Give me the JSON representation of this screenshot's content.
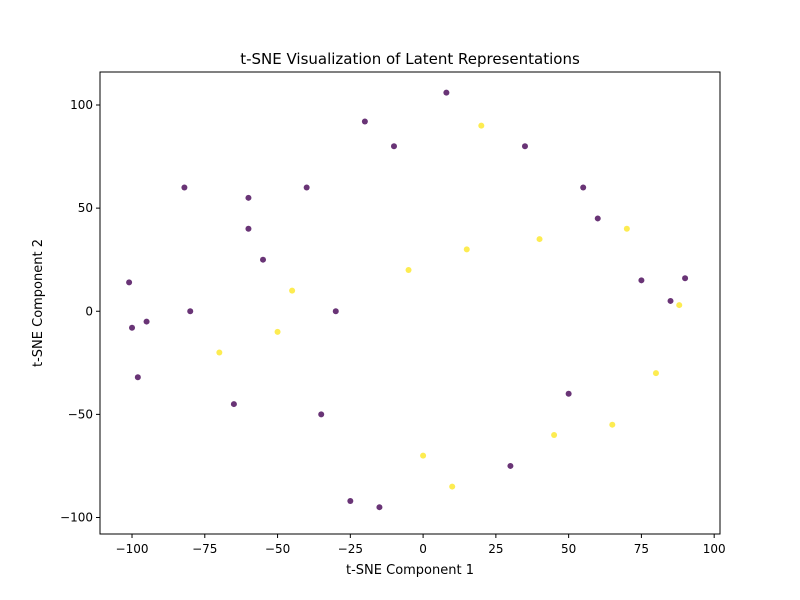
{
  "chart_data": {
    "type": "scatter",
    "title": "t-SNE Visualization of Latent Representations",
    "xlabel": "t-SNE Component 1",
    "ylabel": "t-SNE Component 2",
    "xlim": [
      -111,
      102
    ],
    "ylim": [
      -108,
      116
    ],
    "xticks": [
      -100,
      -75,
      -50,
      -25,
      0,
      25,
      50,
      75,
      100
    ],
    "yticks": [
      -100,
      -50,
      0,
      50,
      100
    ],
    "grid": false,
    "legend": "none",
    "colors": {
      "class_a": "#440154",
      "class_b": "#fde725"
    },
    "x": [
      -101,
      -98,
      -95,
      -100,
      -82,
      -80,
      -60,
      -40,
      -10,
      8,
      20,
      35,
      55,
      70,
      85,
      90,
      -20,
      -25,
      -15,
      0,
      10,
      30,
      45,
      50,
      -70,
      -65,
      -55,
      -45,
      -30,
      -5,
      15,
      40,
      60,
      75,
      80,
      -35,
      -50,
      -60,
      65,
      88
    ],
    "y": [
      14,
      -32,
      -5,
      -8,
      60,
      0,
      40,
      60,
      80,
      106,
      90,
      80,
      60,
      40,
      5,
      16,
      92,
      -92,
      -95,
      -70,
      -85,
      -75,
      -60,
      -40,
      -20,
      -45,
      25,
      10,
      0,
      20,
      30,
      35,
      45,
      15,
      -30,
      -50,
      -10,
      55,
      -55,
      3
    ],
    "labels": [
      1,
      1,
      1,
      1,
      1,
      1,
      1,
      1,
      1,
      1,
      0,
      1,
      1,
      0,
      1,
      1,
      1,
      1,
      1,
      0,
      0,
      1,
      0,
      1,
      0,
      1,
      1,
      0,
      1,
      0,
      0,
      0,
      1,
      1,
      0,
      1,
      0,
      1,
      0,
      0
    ]
  }
}
